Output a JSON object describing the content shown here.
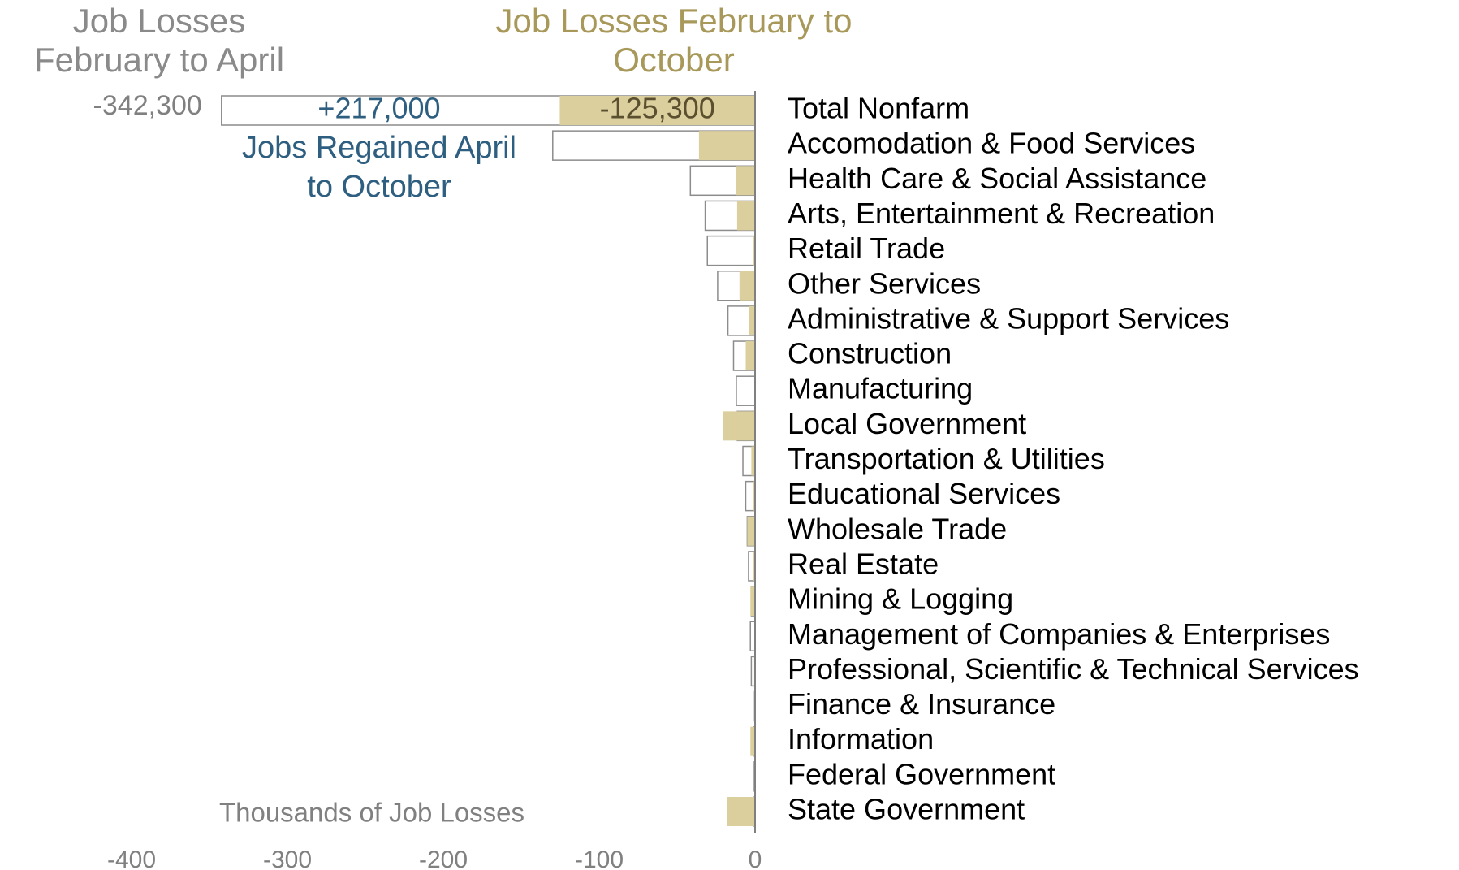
{
  "chart_data": {
    "type": "bar",
    "orientation": "horizontal",
    "categories": [
      "Total Nonfarm",
      "Accomodation & Food Services",
      "Health Care & Social Assistance",
      "Arts, Entertainment & Recreation",
      "Retail Trade",
      "Other Services",
      "Administrative & Support Services",
      "Construction",
      "Manufacturing",
      "Local Government",
      "Transportation & Utilities",
      "Educational Services",
      "Wholesale Trade",
      "Real Estate",
      "Mining & Logging",
      "Management of Companies & Enterprises",
      "Professional, Scientific & Technical Services",
      "Finance & Insurance",
      "Information",
      "Federal Government",
      "State Government"
    ],
    "series": [
      {
        "name": "Job Losses February to April",
        "color": "#ffffff",
        "stroke": "#8c8c8c",
        "values": [
          -342.3,
          -129.8,
          -41.5,
          -32,
          -30.6,
          -24,
          -17.4,
          -13.8,
          -12,
          -11.4,
          -7.8,
          -6,
          -5,
          -4.2,
          -2.4,
          -3,
          -2.4,
          -0.3,
          -0.6,
          -0.5,
          -0.5
        ],
        "value_labels": [
          "-342,300",
          null,
          null,
          null,
          null,
          null,
          null,
          null,
          null,
          null,
          null,
          null,
          null,
          null,
          null,
          null,
          null,
          null,
          null,
          null,
          null
        ]
      },
      {
        "name": "Job Losses February to October",
        "color": "#dccf9e",
        "values": [
          -125.3,
          -36,
          -12,
          -11.5,
          -1,
          -10,
          -4,
          -6,
          -0.5,
          -20.4,
          -2.4,
          -1,
          -5,
          -1,
          -3,
          -0.5,
          -0.6,
          0,
          -3,
          -0.3,
          -18
        ],
        "value_labels": [
          "-125,300",
          null,
          null,
          null,
          null,
          null,
          null,
          null,
          null,
          null,
          null,
          null,
          null,
          null,
          null,
          null,
          null,
          null,
          null,
          null,
          null
        ]
      }
    ],
    "annotations": [
      "+217,000",
      "Jobs Regained April to October"
    ],
    "xlabel": "Thousands of Job Losses",
    "xlim": [
      -400,
      0
    ],
    "xticks": [
      -400,
      -300,
      -200,
      -100,
      0
    ],
    "grid": false
  }
}
